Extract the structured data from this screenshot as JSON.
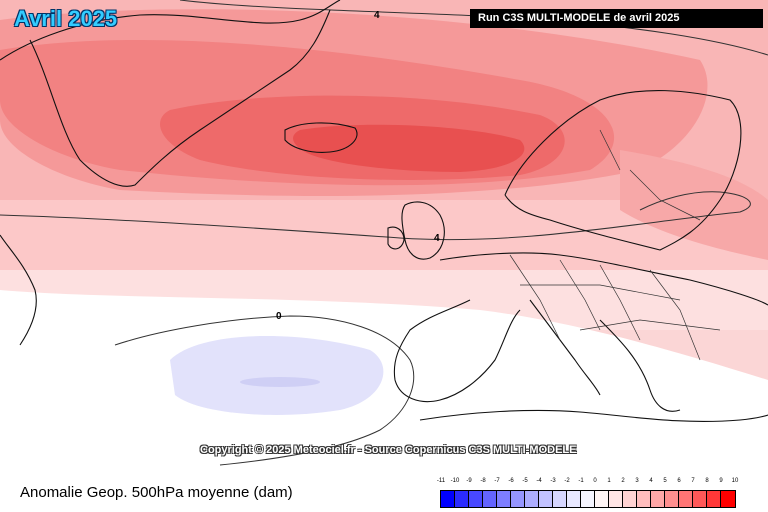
{
  "title": "Avril 2025",
  "run_label": "Run C3S MULTI-MODELE de avril 2025",
  "copyright": "Copyright © 2025 Meteociel.fr - Source Copernicus C3S MULTI-MODELE",
  "caption": "Anomalie Geop. 500hPa moyenne (dam)",
  "contour_labels": {
    "top": "4",
    "middle": "4",
    "south": "0"
  },
  "legend": {
    "ticks": [
      "-11",
      "-10",
      "-9",
      "-8",
      "-7",
      "-6",
      "-5",
      "-4",
      "-3",
      "-2",
      "-1",
      "0",
      "1",
      "2",
      "3",
      "4",
      "5",
      "6",
      "7",
      "8",
      "9",
      "10"
    ],
    "colors": [
      "#0000ff",
      "#2b2bff",
      "#4848ff",
      "#6464ff",
      "#7e7eff",
      "#9696ff",
      "#adadff",
      "#c2c2ff",
      "#d6d6ff",
      "#e8e8ff",
      "#f5f5ff",
      "#fff5f5",
      "#ffe5e5",
      "#ffd2d2",
      "#ffbdbd",
      "#ffa7a7",
      "#ff8f8f",
      "#ff7575",
      "#ff5858",
      "#ff3838",
      "#ff0000"
    ]
  }
}
